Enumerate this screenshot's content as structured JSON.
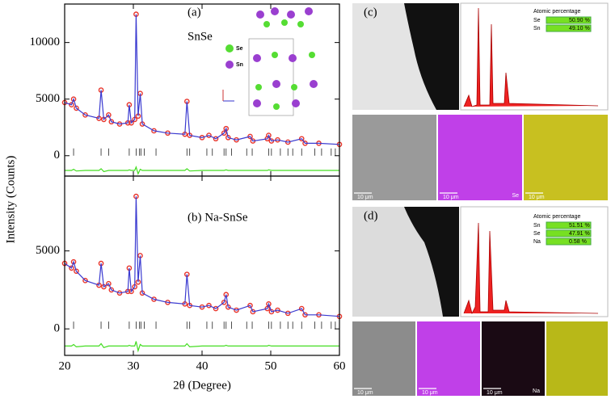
{
  "chart_data": [
    {
      "type": "line",
      "ylabel": "Intensity (Counts)",
      "annotations": [
        "(a)",
        "SnSe"
      ],
      "x": [
        20,
        21,
        21.3,
        21.7,
        23,
        25,
        25.3,
        25.7,
        26.4,
        26.8,
        28,
        29.2,
        29.4,
        29.7,
        30.2,
        30.4,
        30.7,
        31,
        31.3,
        33,
        35,
        37.5,
        37.8,
        38.2,
        40,
        41,
        42,
        43.2,
        43.5,
        43.8,
        45,
        47,
        47.4,
        49.5,
        49.7,
        50.1,
        51,
        52.5,
        54.5,
        55,
        57,
        60
      ],
      "series": [
        {
          "color": "#e8332a",
          "marker": "star",
          "values": [
            4700,
            4500,
            5000,
            4200,
            3600,
            3300,
            5800,
            3200,
            3600,
            3000,
            2800,
            2900,
            4500,
            2900,
            3200,
            12500,
            3500,
            5500,
            2800,
            2200,
            2000,
            1900,
            4800,
            1800,
            1600,
            1800,
            1500,
            2000,
            2400,
            1600,
            1400,
            1700,
            1300,
            1500,
            1800,
            1300,
            1400,
            1200,
            1500,
            1100,
            1100,
            1000
          ]
        },
        {
          "color": "#3a3ad0",
          "values": [
            4700,
            4500,
            5000,
            4200,
            3600,
            3300,
            5800,
            3200,
            3600,
            3000,
            2800,
            2900,
            4500,
            2900,
            3200,
            12500,
            3500,
            5500,
            2800,
            2200,
            2000,
            1900,
            4800,
            1800,
            1600,
            1800,
            1500,
            2000,
            2400,
            1600,
            1400,
            1700,
            1300,
            1500,
            1800,
            1300,
            1400,
            1200,
            1500,
            1100,
            1100,
            1000
          ]
        },
        {
          "color": "#44dd22",
          "values": [
            -1300,
            -1300,
            -1200,
            -1350,
            -1300,
            -1300,
            -1150,
            -1400,
            -1300,
            -1300,
            -1300,
            -1300,
            -1250,
            -1300,
            -1300,
            -1000,
            -1600,
            -1200,
            -1300,
            -1300,
            -1300,
            -1300,
            -1150,
            -1350,
            -1300,
            -1300,
            -1300,
            -1300,
            -1250,
            -1300,
            -1300,
            -1300,
            -1300,
            -1300,
            -1250,
            -1300,
            -1300,
            -1300,
            -1300,
            -1300,
            -1300,
            -1300
          ]
        }
      ],
      "bragg_positions": [
        21.3,
        25.3,
        26.4,
        29.4,
        30.4,
        30.9,
        31.1,
        31.6,
        33.3,
        37.8,
        38.2,
        40.7,
        41.5,
        43.2,
        43.5,
        44.3,
        46.5,
        47.3,
        49.7,
        50.1,
        51.4,
        52.5,
        53.2,
        54.5,
        56.4,
        57.4,
        58.8,
        59.4
      ],
      "xlim": [
        20,
        60
      ],
      "xticks": [
        20,
        30,
        40,
        50,
        60
      ],
      "ylim": [
        -1800,
        13400
      ],
      "yticks": [
        0,
        5000,
        10000
      ]
    },
    {
      "type": "line",
      "xlabel": "2θ (Degree)",
      "annotations": [
        "(b) Na-SnSe"
      ],
      "x": [
        20,
        21,
        21.3,
        21.7,
        23,
        25,
        25.3,
        25.7,
        26.4,
        26.8,
        28,
        29.2,
        29.4,
        29.7,
        30.2,
        30.4,
        30.7,
        31,
        31.3,
        33,
        35,
        37.5,
        37.8,
        38.2,
        40,
        41,
        42,
        43.2,
        43.5,
        43.8,
        45,
        47,
        47.4,
        49.5,
        49.7,
        50.1,
        51,
        52.5,
        54.5,
        55,
        57,
        60
      ],
      "series": [
        {
          "color": "#e8332a",
          "marker": "star",
          "values": [
            4200,
            3900,
            4300,
            3700,
            3100,
            2800,
            4200,
            2700,
            2900,
            2500,
            2300,
            2400,
            3900,
            2400,
            2700,
            8500,
            3000,
            4700,
            2300,
            1900,
            1700,
            1600,
            3500,
            1500,
            1400,
            1500,
            1300,
            1700,
            2200,
            1400,
            1200,
            1500,
            1100,
            1300,
            1600,
            1100,
            1200,
            1000,
            1300,
            900,
            900,
            800
          ]
        },
        {
          "color": "#3a3ad0",
          "values": [
            4200,
            3900,
            4300,
            3700,
            3100,
            2800,
            4200,
            2700,
            2900,
            2500,
            2300,
            2400,
            3900,
            2400,
            2700,
            8500,
            3000,
            4700,
            2300,
            1900,
            1700,
            1600,
            3500,
            1500,
            1400,
            1500,
            1300,
            1700,
            2200,
            1400,
            1200,
            1500,
            1100,
            1300,
            1600,
            1100,
            1200,
            1000,
            1300,
            900,
            900,
            800
          ]
        },
        {
          "color": "#44dd22",
          "values": [
            -1100,
            -1100,
            -1000,
            -1150,
            -1100,
            -1100,
            -950,
            -1200,
            -1100,
            -1100,
            -1100,
            -1100,
            -1050,
            -1100,
            -1100,
            -800,
            -1400,
            -1000,
            -1100,
            -1100,
            -1100,
            -1100,
            -950,
            -1150,
            -1100,
            -1100,
            -1100,
            -1100,
            -1050,
            -1100,
            -1100,
            -1100,
            -1100,
            -1100,
            -1050,
            -1100,
            -1100,
            -1100,
            -1100,
            -1100,
            -1100,
            -1100
          ]
        }
      ],
      "bragg_positions": [
        21.3,
        25.3,
        26.4,
        29.4,
        30.4,
        30.9,
        31.1,
        31.6,
        33.3,
        37.8,
        38.2,
        40.7,
        41.5,
        43.2,
        43.5,
        44.3,
        46.5,
        47.3,
        49.7,
        50.1,
        51.4,
        52.5,
        53.2,
        54.5,
        56.4,
        57.4,
        58.8,
        59.4
      ],
      "xlim": [
        20,
        60
      ],
      "xticks": [
        20,
        30,
        40,
        50,
        60
      ],
      "ylim": [
        -1700,
        9800
      ],
      "yticks": [
        0,
        5000
      ]
    }
  ],
  "inset": {
    "labels": [
      "Se",
      "Sn"
    ]
  },
  "panels": [
    {
      "label": "(c)",
      "eds_title": "Atomic percentage",
      "eds_rows": [
        [
          "Se",
          "50.90 %"
        ],
        [
          "Sn",
          "49.10 %"
        ]
      ],
      "scale_bars": [
        "10 μm",
        "10 μm",
        "10 μm"
      ],
      "map_label": "Se"
    },
    {
      "label": "(d)",
      "eds_title": "Atomic percentage",
      "eds_rows": [
        [
          "Sn",
          "51.51 %"
        ],
        [
          "Se",
          "47.91 %"
        ],
        [
          "Na",
          "0.58 %"
        ]
      ],
      "scale_bars": [
        "10 μm",
        "10 μm",
        "10 μm"
      ],
      "map_label": "Na"
    }
  ]
}
